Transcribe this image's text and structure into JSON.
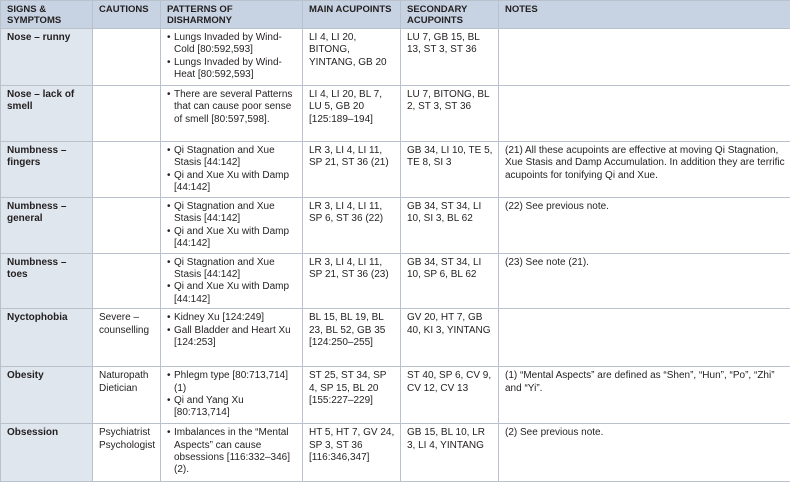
{
  "header": {
    "columns": [
      "SIGNS & SYMPTOMS",
      "CAUTIONS",
      "PATTERNS OF DISHARMONY",
      "MAIN ACUPOINTS",
      "SECONDARY ACUPOINTS",
      "NOTES"
    ]
  },
  "table": {
    "rows": [
      {
        "sign": "Nose – runny",
        "patterns": [
          "Lungs Invaded by Wind-Cold [80:592,593]",
          "Lungs Invaded by Wind-Heat [80:592,593]"
        ],
        "main": "LI 4, LI 20, BITONG, YINTANG, GB 20",
        "secondary": "LU 7, GB 15, BL 13, ST 3, ST 36"
      },
      {
        "sign": "Nose – lack of smell",
        "patterns": [
          "There are several Patterns that can cause poor sense of smell [80:597,598]."
        ],
        "main": "LI 4, LI 20, BL 7, LU 5, GB 20 [125:189–194]",
        "secondary": "LU 7, BITONG, BL 2, ST 3, ST 36"
      },
      {
        "sign": "Numbness – fingers",
        "patterns": [
          "Qi Stagnation and Xue Stasis [44:142]",
          "Qi and Xue Xu with Damp [44:142]"
        ],
        "main": "LR 3, LI 4, LI 11, SP 21, ST 36 (21)",
        "secondary": "GB 34, LI 10, TE 5, TE 8, SI 3",
        "notes": "(21) All these acupoints are effective at moving Qi Stagnation, Xue Stasis and Damp Accumulation. In addition they are terrific acupoints for tonifying Qi and Xue."
      },
      {
        "sign": "Numbness – general",
        "patterns": [
          "Qi Stagnation and Xue Stasis [44:142]",
          "Qi and Xue Xu with Damp [44:142]"
        ],
        "main": "LR 3, LI 4, LI 11, SP 6, ST 36 (22)",
        "secondary": "GB 34, ST 34, LI 10, SI 3, BL 62",
        "notes": "(22) See previous note."
      },
      {
        "sign": "Numbness – toes",
        "patterns": [
          "Qi Stagnation and Xue Stasis [44:142]",
          "Qi and Xue Xu with Damp [44:142]"
        ],
        "main": "LR 3, LI 4, LI 11, SP 21, ST 36 (23)",
        "secondary": "GB 34, ST 34, LI 10, SP 6, BL 62",
        "notes": "(23) See note (21)."
      },
      {
        "sign": "Nyctophobia",
        "cautions": "Severe – counselling",
        "patterns": [
          "Kidney Xu [124:249]",
          "Gall Bladder and Heart Xu [124:253]"
        ],
        "main": "BL 15, BL 19, BL 23, BL 52, GB 35 [124:250–255]",
        "secondary": "GV 20, HT 7, GB 40, KI 3, YINTANG"
      },
      {
        "sign": "Obesity",
        "cautions": "Naturopath Dietician",
        "patterns": [
          "Phlegm type [80:713,714] (1)",
          "Qi and Yang Xu [80:713,714]"
        ],
        "main": "ST 25, ST 34, SP 4, SP 15, BL 20 [155:227–229]",
        "secondary": "ST 40, SP 6, CV 9, CV 12, CV 13",
        "notes": "(1) “Mental Aspects” are defined as “Shen”, “Hun”, “Po”, “Zhi” and “Yi”."
      },
      {
        "sign": "Obsession",
        "cautions": "Psychiatrist Psychologist",
        "patterns": [
          "Imbalances in the “Mental Aspects” can cause obsessions [116:332–346] (2)."
        ],
        "main": "HT 5, HT 7, GV 24, SP 3, ST 36 [116:346,347]",
        "secondary": "GB 15, BL 10, LR 3, LI 4, YINTANG",
        "notes": "(2) See previous note."
      }
    ]
  }
}
